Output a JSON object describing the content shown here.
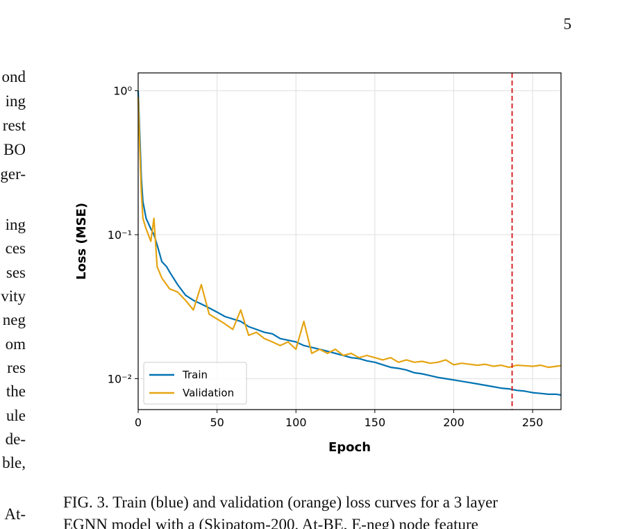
{
  "page_number": "5",
  "left_column_fragments": [
    "ond",
    "ing",
    "rest",
    "BO",
    "ger-",
    "ing",
    "ces",
    "ses",
    "vity",
    "neg",
    "om",
    "res",
    "the",
    "ule",
    "de-",
    "ble,",
    "At-"
  ],
  "caption": [
    "FIG. 3. Train (blue) and validation (orange) loss curves for a 3 layer",
    "EGNN model with a (Skipatom-200, At-BE, E-neg) node feature"
  ],
  "chart_data": {
    "type": "line",
    "xlabel": "Epoch",
    "ylabel": "Loss (MSE)",
    "yscale": "log",
    "grid": true,
    "legend": "lower left",
    "xlim": [
      0,
      268
    ],
    "xticks": [
      0,
      50,
      100,
      150,
      200,
      250
    ],
    "ylim": [
      0.0061,
      1.33
    ],
    "yticks": [
      {
        "value": 1,
        "label": "10⁰"
      },
      {
        "value": 0.1,
        "label": "10⁻¹"
      },
      {
        "value": 0.01,
        "label": "10⁻²"
      }
    ],
    "vline": {
      "x": 237,
      "color": "#d62728"
    },
    "x": [
      0,
      1,
      2,
      3,
      5,
      8,
      10,
      12,
      15,
      18,
      20,
      25,
      30,
      35,
      40,
      45,
      50,
      55,
      60,
      65,
      70,
      75,
      80,
      85,
      90,
      95,
      100,
      105,
      110,
      115,
      120,
      125,
      130,
      135,
      140,
      145,
      150,
      155,
      160,
      165,
      170,
      175,
      180,
      185,
      190,
      195,
      200,
      205,
      210,
      215,
      220,
      225,
      230,
      235,
      240,
      245,
      250,
      255,
      260,
      265,
      268
    ],
    "series": [
      {
        "name": "Train",
        "color": "#0072b2",
        "values": [
          1.0,
          0.5,
          0.25,
          0.17,
          0.13,
          0.11,
          0.1,
          0.085,
          0.065,
          0.06,
          0.055,
          0.045,
          0.038,
          0.035,
          0.033,
          0.031,
          0.029,
          0.027,
          0.026,
          0.025,
          0.023,
          0.022,
          0.021,
          0.0205,
          0.019,
          0.0185,
          0.018,
          0.017,
          0.0165,
          0.016,
          0.0155,
          0.015,
          0.0145,
          0.014,
          0.0138,
          0.0133,
          0.013,
          0.0125,
          0.012,
          0.0118,
          0.0115,
          0.011,
          0.0108,
          0.0105,
          0.0102,
          0.01,
          0.0098,
          0.0096,
          0.0094,
          0.0092,
          0.009,
          0.0088,
          0.0086,
          0.0085,
          0.0083,
          0.0082,
          0.008,
          0.0079,
          0.0078,
          0.0078,
          0.0077
        ]
      },
      {
        "name": "Validation",
        "color": "#e5a412",
        "values": [
          0.9,
          0.4,
          0.2,
          0.13,
          0.11,
          0.09,
          0.13,
          0.06,
          0.05,
          0.045,
          0.042,
          0.04,
          0.035,
          0.03,
          0.045,
          0.028,
          0.026,
          0.024,
          0.022,
          0.03,
          0.02,
          0.021,
          0.019,
          0.018,
          0.017,
          0.018,
          0.016,
          0.025,
          0.015,
          0.016,
          0.015,
          0.016,
          0.0145,
          0.015,
          0.014,
          0.0145,
          0.014,
          0.0135,
          0.014,
          0.013,
          0.0135,
          0.013,
          0.0132,
          0.0128,
          0.013,
          0.0135,
          0.0125,
          0.0128,
          0.0126,
          0.0124,
          0.0126,
          0.0122,
          0.0124,
          0.012,
          0.0124,
          0.0123,
          0.0122,
          0.0124,
          0.012,
          0.0122,
          0.0123
        ]
      }
    ]
  }
}
